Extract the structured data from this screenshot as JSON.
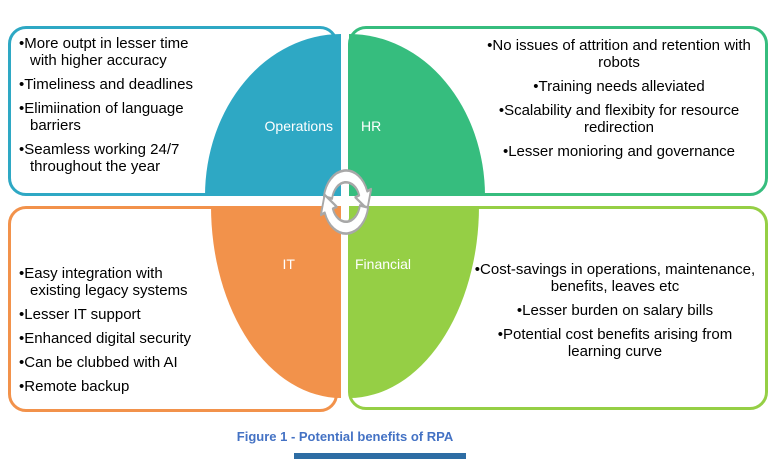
{
  "figure": {
    "caption": "Figure 1 - Potential benefits of RPA"
  },
  "center_icon": "cycle-arrows",
  "quadrants": [
    {
      "id": "operations",
      "label": "Operations",
      "color": "#2EA8C4",
      "items": [
        "More outpt in lesser time with higher accuracy",
        "Timeliness and deadlines",
        "Elimiination of language barriers",
        "Seamless working 24/7 throughout the year"
      ]
    },
    {
      "id": "hr",
      "label": "HR",
      "color": "#36BD7E",
      "items": [
        "No issues of attrition and retention with robots",
        "Training needs alleviated",
        "Scalability and flexibity for resource redirection",
        "Lesser monioring and governance"
      ]
    },
    {
      "id": "it",
      "label": "IT",
      "color": "#F2924B",
      "items": [
        "Easy integration with existing legacy systems",
        "Lesser IT support",
        "Enhanced digital security",
        "Can be clubbed with AI",
        "Remote backup"
      ]
    },
    {
      "id": "financial",
      "label": "Financial",
      "color": "#95CF45",
      "items": [
        "Cost-savings in operations, maintenance, benefits, leaves etc",
        "Lesser burden on salary bills",
        "Potential cost benefits arising from learning curve"
      ]
    }
  ]
}
